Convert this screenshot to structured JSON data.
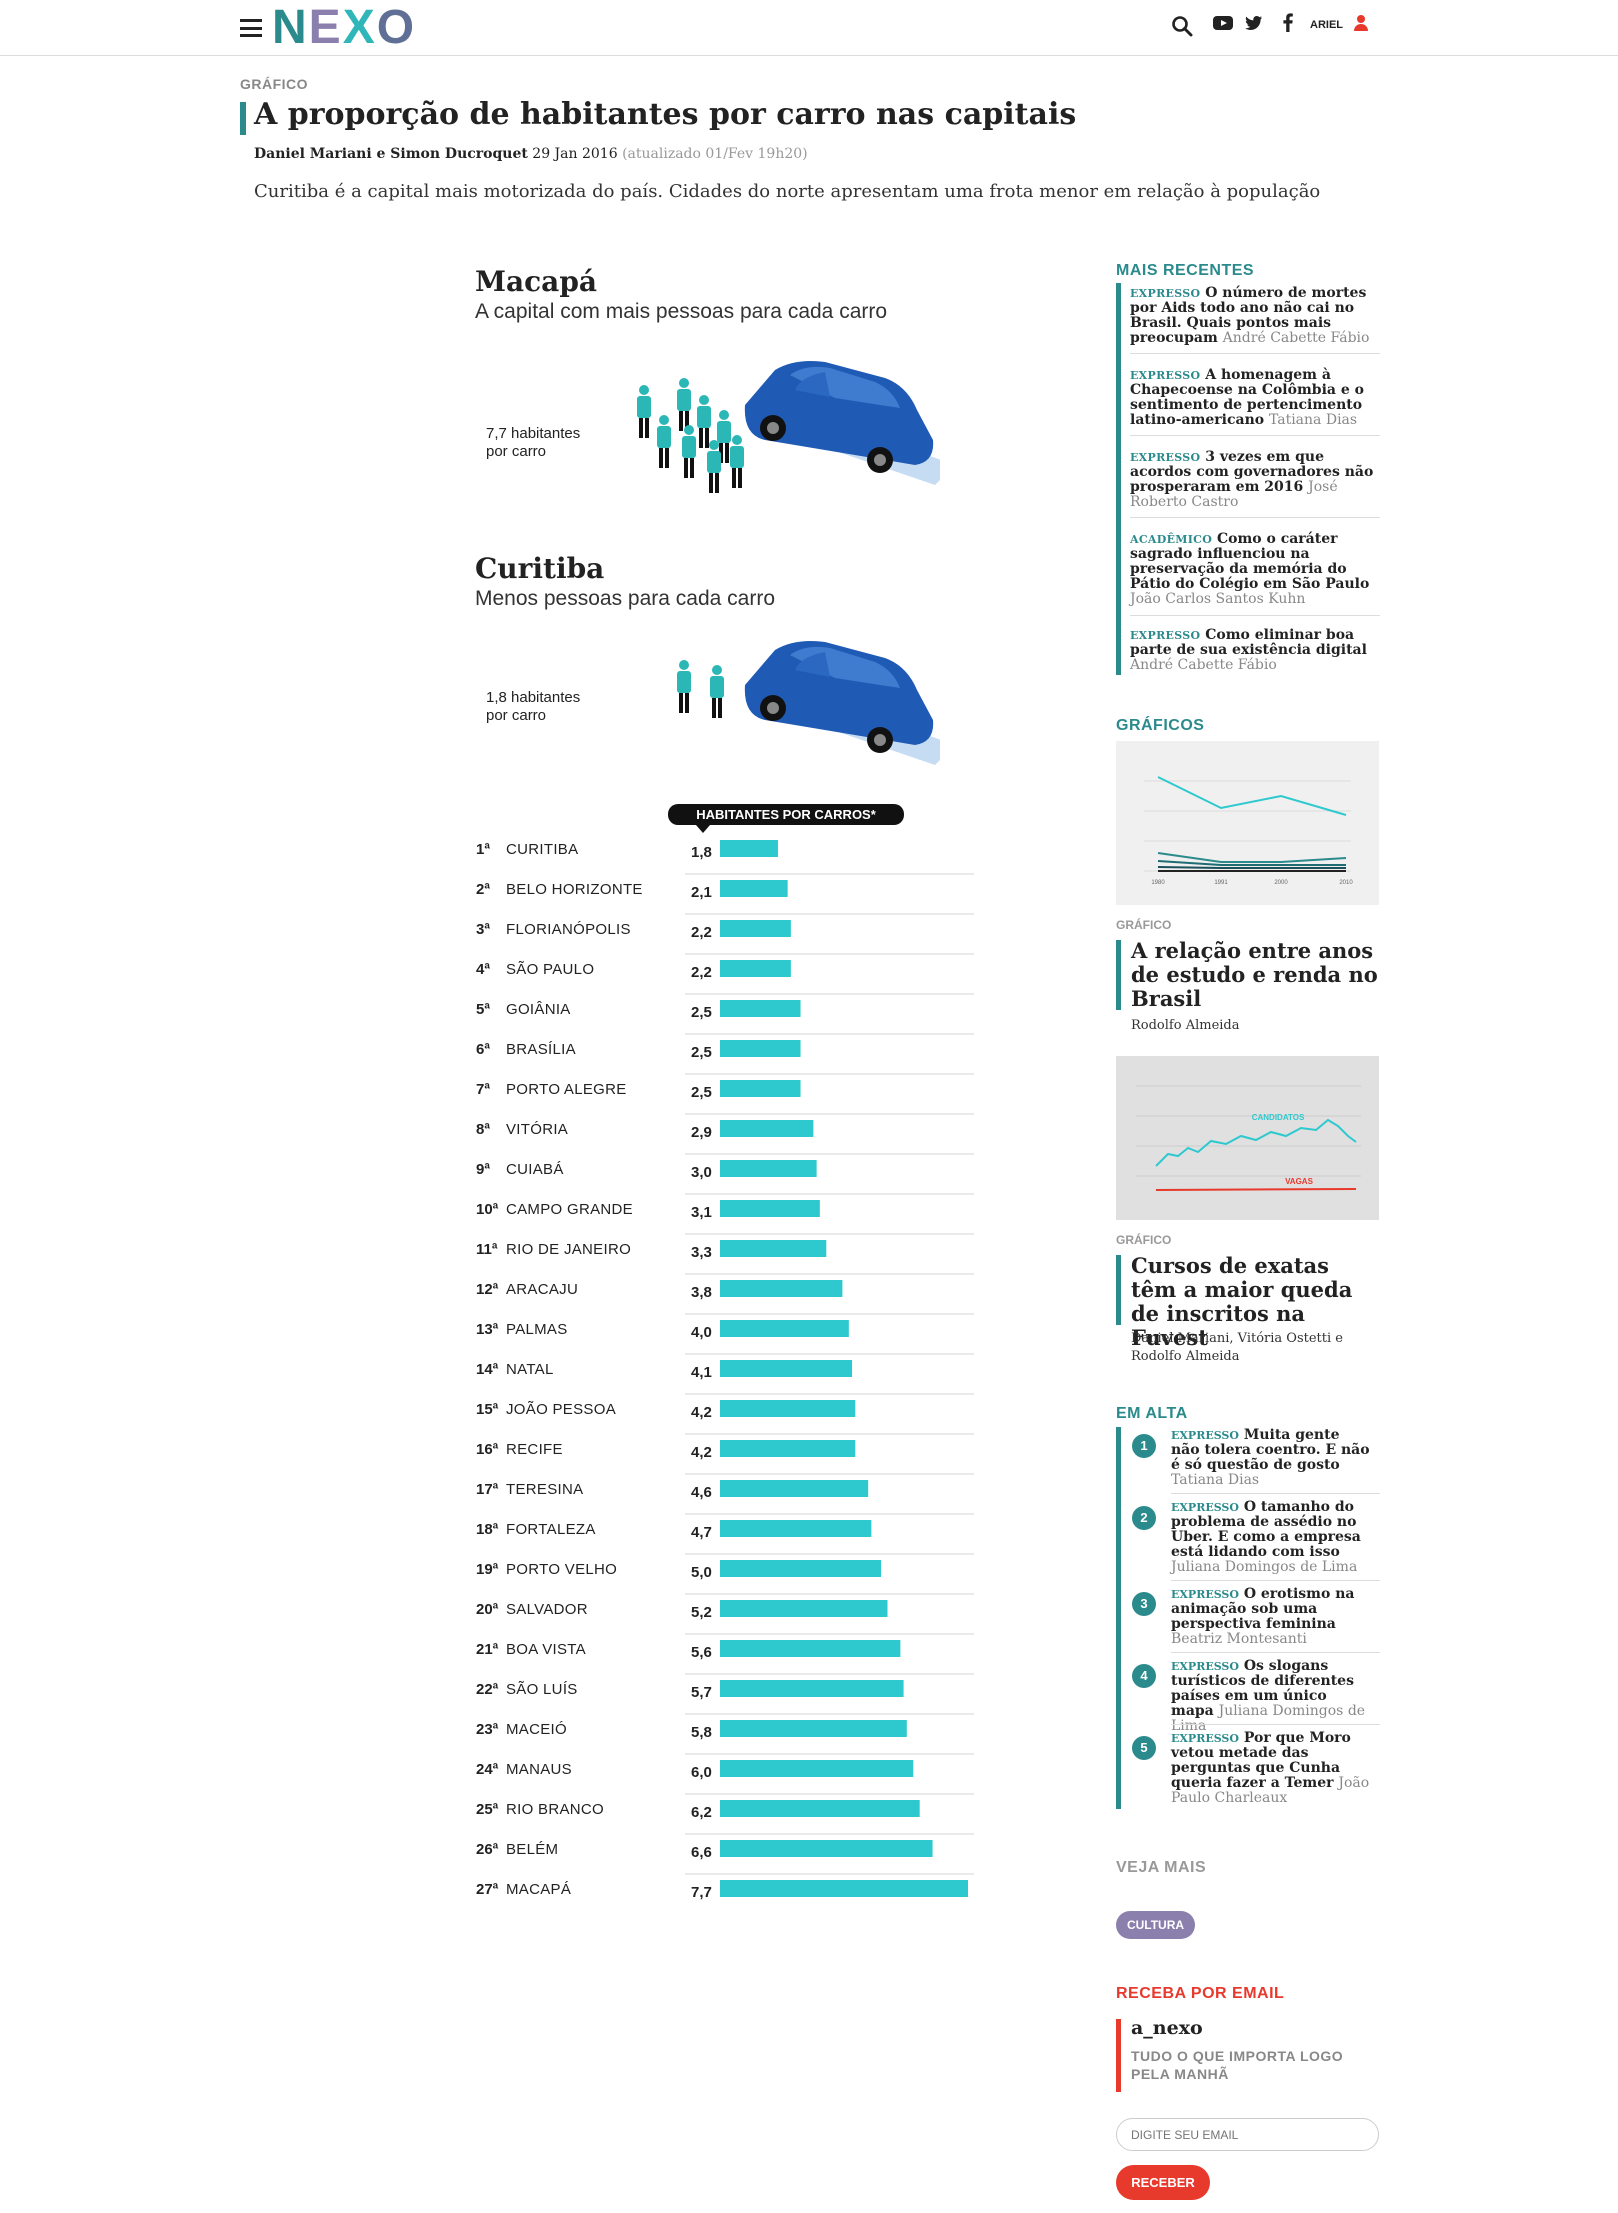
{
  "header": {
    "logo": [
      "N",
      "E",
      "X",
      "O"
    ],
    "user_name": "ARIEL"
  },
  "article": {
    "kicker": "GRÁFICO",
    "title": "A proporção de habitantes por carro nas capitais",
    "authors": "Daniel Mariani e Simon Ducroquet",
    "date": "29 Jan 2016",
    "updated": "(atualizado 01/Fev 19h20)",
    "subtitle": "Curitiba é a capital mais motorizada do país. Cidades do norte apresentam uma frota menor em relação à população"
  },
  "infographic": {
    "top": {
      "city": "Macapá",
      "desc": "A capital com mais pessoas para cada carro",
      "stat_1": "7,7 habitantes",
      "stat_2": "por carro"
    },
    "bottom": {
      "city": "Curitiba",
      "desc": "Menos pessoas para cada carro",
      "stat_1": "1,8 habitantes",
      "stat_2": "por carro"
    },
    "colors": {
      "bar": "#2ec9cf",
      "car": "#1f5bb5",
      "person": "#2ab7b6"
    }
  },
  "chart_data": {
    "type": "bar",
    "title": "HABITANTES POR CARROS*",
    "ranks": [
      "1ª",
      "2ª",
      "3ª",
      "4ª",
      "5ª",
      "6ª",
      "7ª",
      "8ª",
      "9ª",
      "10ª",
      "11ª",
      "12ª",
      "13ª",
      "14ª",
      "15ª",
      "16ª",
      "17ª",
      "18ª",
      "19ª",
      "20ª",
      "21ª",
      "22ª",
      "23ª",
      "24ª",
      "25ª",
      "26ª",
      "27ª"
    ],
    "categories": [
      "CURITIBA",
      "BELO HORIZONTE",
      "FLORIANÓPOLIS",
      "SÃO PAULO",
      "GOIÂNIA",
      "BRASÍLIA",
      "PORTO ALEGRE",
      "VITÓRIA",
      "CUIABÁ",
      "CAMPO GRANDE",
      "RIO DE JANEIRO",
      "ARACAJU",
      "PALMAS",
      "NATAL",
      "JOÃO PESSOA",
      "RECIFE",
      "TERESINA",
      "FORTALEZA",
      "PORTO VELHO",
      "SALVADOR",
      "BOA VISTA",
      "SÃO LUÍS",
      "MACEIÓ",
      "MANAUS",
      "RIO BRANCO",
      "BELÉM",
      "MACAPÁ"
    ],
    "labels": [
      "1,8",
      "2,1",
      "2,2",
      "2,2",
      "2,5",
      "2,5",
      "2,5",
      "2,9",
      "3,0",
      "3,1",
      "3,3",
      "3,8",
      "4,0",
      "4,1",
      "4,2",
      "4,2",
      "4,6",
      "4,7",
      "5,0",
      "5,2",
      "5,6",
      "5,7",
      "5,8",
      "6,0",
      "6,2",
      "6,6",
      "7,7"
    ],
    "values": [
      1.8,
      2.1,
      2.2,
      2.2,
      2.5,
      2.5,
      2.5,
      2.9,
      3.0,
      3.1,
      3.3,
      3.8,
      4.0,
      4.1,
      4.2,
      4.2,
      4.6,
      4.7,
      5.0,
      5.2,
      5.6,
      5.7,
      5.8,
      6.0,
      6.2,
      6.6,
      7.7
    ]
  },
  "sidebar": {
    "recent_heading": "MAIS RECENTES",
    "recent": [
      {
        "tag": "EXPRESSO",
        "title": "O número de mortes por Aids todo ano não cai no Brasil. Quais pontos mais preocupam",
        "author": "André Cabette Fábio"
      },
      {
        "tag": "EXPRESSO",
        "title": "A homenagem à Chapecoense na Colômbia e o sentimento de pertencimento latino-americano",
        "author": "Tatiana Dias"
      },
      {
        "tag": "EXPRESSO",
        "title": "3 vezes em que acordos com governadores não prosperaram em 2016",
        "author": "José Roberto Castro"
      },
      {
        "tag": "ACADÊMICO",
        "title": "Como o caráter sagrado influenciou na preservação da memória do Pátio do Colégio em São Paulo",
        "author": "João Carlos Santos Kuhn"
      },
      {
        "tag": "EXPRESSO",
        "title": "Como eliminar boa parte de sua existência digital",
        "author": "André Cabette Fábio"
      }
    ],
    "charts_heading": "GRÁFICOS",
    "thumb1_ticks": [
      "1980",
      "1991",
      "2000",
      "2010"
    ],
    "card1": {
      "kicker": "GRÁFICO",
      "title": "A relação entre anos de estudo e renda no Brasil",
      "author": "Rodolfo Almeida"
    },
    "thumb2_labels": {
      "a": "CANDIDATOS",
      "b": "VAGAS"
    },
    "card2": {
      "kicker": "GRÁFICO",
      "title": "Cursos de exatas têm a maior queda de inscritos na Fuvest",
      "author_1": "Daniel Mariani, Vitória Ostetti e",
      "author_2": "Rodolfo Almeida"
    },
    "trending_heading": "EM ALTA",
    "trending": [
      {
        "num": "1",
        "tag": "EXPRESSO",
        "title": "Muita gente não tolera coentro. E não é só questão de gosto",
        "author": "Tatiana Dias"
      },
      {
        "num": "2",
        "tag": "EXPRESSO",
        "title": "O tamanho do problema de assédio no Uber. E como a empresa está lidando com isso",
        "author": "Juliana Domingos de Lima"
      },
      {
        "num": "3",
        "tag": "EXPRESSO",
        "title": "O erotismo na animação sob uma perspectiva feminina",
        "author": "Beatriz Montesanti"
      },
      {
        "num": "4",
        "tag": "EXPRESSO",
        "title": "Os slogans turísticos de diferentes países em um único mapa",
        "author": "Juliana Domingos de Lima"
      },
      {
        "num": "5",
        "tag": "EXPRESSO",
        "title": "Por que Moro vetou metade das perguntas que Cunha queria fazer a Temer",
        "author": "João Paulo Charleaux"
      }
    ],
    "more_heading": "VEJA MAIS",
    "more_tag": "CULTURA",
    "email_heading": "RECEBA POR EMAIL",
    "newsletter_name": "a_nexo",
    "newsletter_desc_1": "TUDO O QUE IMPORTA LOGO",
    "newsletter_desc_2": "PELA MANHÃ",
    "email_placeholder": "DIGITE SEU EMAIL",
    "submit_label": "RECEBER"
  }
}
